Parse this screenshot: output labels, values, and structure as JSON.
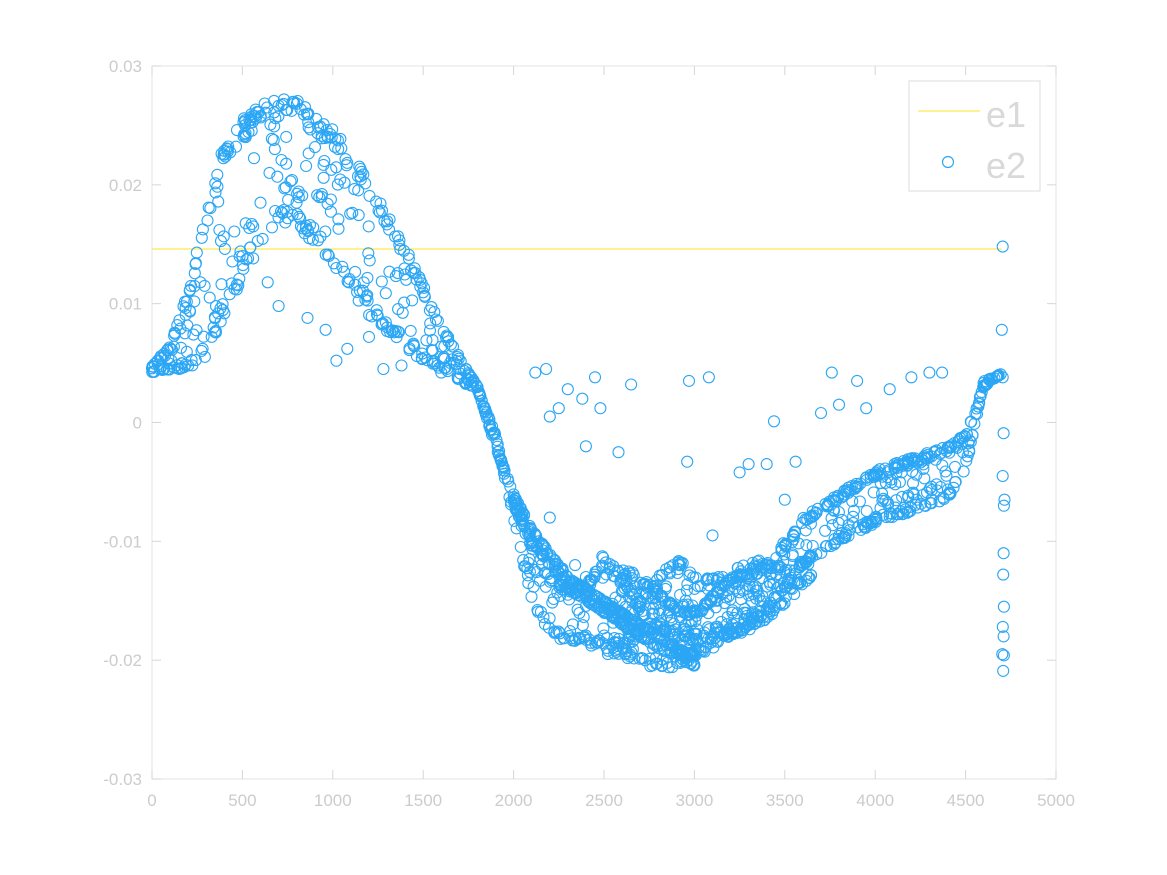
{
  "chart_data": {
    "type": "scatter",
    "xlim": [
      0,
      5000
    ],
    "ylim": [
      -0.03,
      0.03
    ],
    "xticks": [
      0,
      500,
      1000,
      1500,
      2000,
      2500,
      3000,
      3500,
      4000,
      4500,
      5000
    ],
    "yticks": [
      -0.03,
      -0.02,
      -0.01,
      0,
      0.01,
      0.02,
      0.03
    ],
    "xtick_labels": [
      "0",
      "500",
      "1000",
      "1500",
      "2000",
      "2500",
      "3000",
      "3500",
      "4000",
      "4500",
      "5000"
    ],
    "ytick_labels": [
      "-0.03",
      "-0.02",
      "-0.01",
      "0",
      "0.01",
      "0.02",
      "0.03"
    ],
    "grid": false,
    "legend_position": "top-right",
    "series": [
      {
        "name": "e1",
        "kind": "line",
        "color": "#ffe650",
        "x": [
          0,
          4700
        ],
        "y": [
          0.0146,
          0.0146
        ]
      },
      {
        "name": "e2",
        "kind": "scatter",
        "marker": "open-circle",
        "color": "#2ba6f5",
        "bands": [
          {
            "x": [
              0,
              100,
              200,
              300,
              400,
              500,
              600,
              700,
              800,
              900,
              1000,
              1100,
              1200,
              1300,
              1400,
              1500,
              1600,
              1700,
              1800,
              1900,
              2000,
              2100,
              2200,
              2300,
              2400,
              2500,
              2600,
              2700,
              2800,
              2900,
              3000,
              3200,
              3400,
              3600,
              3800,
              4000,
              4200,
              4400,
              4500,
              4600,
              4700
            ],
            "y_upper": [
              0.0047,
              0.0065,
              0.011,
              0.018,
              0.0235,
              0.0255,
              0.0268,
              0.0275,
              0.0272,
              0.0258,
              0.0248,
              0.0228,
              0.0205,
              0.0175,
              0.0148,
              0.0115,
              0.0082,
              0.0055,
              0.003,
              -0.002,
              -0.006,
              -0.01,
              -0.013,
              -0.014,
              -0.0135,
              -0.011,
              -0.013,
              -0.015,
              -0.013,
              -0.011,
              -0.013,
              -0.013,
              -0.012,
              -0.008,
              -0.006,
              -0.004,
              -0.003,
              -0.002,
              -0.001,
              0.003,
              0.0042
            ],
            "y_lower": [
              0.0042,
              0.0044,
              0.0046,
              0.0055,
              0.009,
              0.012,
              0.015,
              0.017,
              0.0165,
              0.015,
              0.0132,
              0.0112,
              0.009,
              0.0075,
              0.0062,
              0.0052,
              0.0045,
              0.0035,
              0.0028,
              -0.001,
              -0.008,
              -0.015,
              -0.0178,
              -0.0185,
              -0.0185,
              -0.0195,
              -0.0197,
              -0.0203,
              -0.0208,
              -0.0208,
              -0.02,
              -0.018,
              -0.016,
              -0.012,
              -0.01,
              -0.0085,
              -0.0075,
              -0.0065,
              -0.004,
              0.0035,
              0.004
            ]
          },
          {
            "x": [
              2000,
              2100,
              2200,
              2300,
              2400,
              2500,
              2600,
              2700,
              2800,
              2900,
              3000
            ],
            "y_upper": [
              -0.006,
              -0.009,
              -0.011,
              -0.013,
              -0.014,
              -0.015,
              -0.016,
              -0.017,
              -0.018,
              -0.019,
              -0.0195
            ],
            "y_lower": [
              -0.007,
              -0.01,
              -0.012,
              -0.014,
              -0.015,
              -0.016,
              -0.017,
              -0.018,
              -0.019,
              -0.0198,
              -0.0205
            ]
          },
          {
            "x": [
              2550,
              2650,
              2750,
              2850,
              2950,
              3050,
              3150,
              3250,
              3350,
              3450,
              3550,
              3650
            ],
            "y_upper": [
              -0.012,
              -0.0125,
              -0.0135,
              -0.015,
              -0.016,
              -0.0155,
              -0.0135,
              -0.012,
              -0.0115,
              -0.012,
              -0.0125,
              -0.011
            ],
            "y_lower": [
              -0.019,
              -0.0185,
              -0.0175,
              -0.0178,
              -0.0185,
              -0.0185,
              -0.018,
              -0.0178,
              -0.0172,
              -0.016,
              -0.0145,
              -0.013
            ]
          }
        ],
        "points": [
          [
            4705,
            0.0148
          ],
          [
            4700,
            0.0078
          ],
          [
            4705,
            0.0038
          ],
          [
            4710,
            -0.0009
          ],
          [
            4705,
            -0.0045
          ],
          [
            4715,
            -0.0065
          ],
          [
            4712,
            -0.007
          ],
          [
            4710,
            -0.011
          ],
          [
            4708,
            -0.0128
          ],
          [
            4712,
            -0.0155
          ],
          [
            4706,
            -0.0172
          ],
          [
            4710,
            -0.018
          ],
          [
            4703,
            -0.0195
          ],
          [
            4712,
            -0.0196
          ],
          [
            4708,
            -0.0209
          ],
          [
            640,
            0.0118
          ],
          [
            700,
            0.0098
          ],
          [
            860,
            0.0088
          ],
          [
            960,
            0.0078
          ],
          [
            1020,
            0.0052
          ],
          [
            1080,
            0.0062
          ],
          [
            1200,
            0.0072
          ],
          [
            1280,
            0.0045
          ],
          [
            1380,
            0.0048
          ],
          [
            1600,
            0.0042
          ],
          [
            1700,
            0.0045
          ],
          [
            2120,
            0.0042
          ],
          [
            2180,
            0.0045
          ],
          [
            2300,
            0.0028
          ],
          [
            2380,
            0.002
          ],
          [
            2450,
            0.0038
          ],
          [
            2480,
            0.0012
          ],
          [
            2650,
            0.0032
          ],
          [
            2970,
            0.0035
          ],
          [
            3080,
            0.0038
          ],
          [
            3760,
            0.0042
          ],
          [
            3900,
            0.0035
          ],
          [
            4080,
            0.0028
          ],
          [
            4200,
            0.0038
          ],
          [
            4300,
            0.0042
          ],
          [
            4370,
            0.0042
          ],
          [
            2200,
            0.0005
          ],
          [
            2250,
            0.0012
          ],
          [
            2400,
            -0.002
          ],
          [
            2580,
            -0.0025
          ],
          [
            2960,
            -0.0033
          ],
          [
            3300,
            -0.0035
          ],
          [
            3440,
            0.0001
          ],
          [
            3560,
            -0.0033
          ],
          [
            3700,
            0.0008
          ],
          [
            3800,
            0.0015
          ],
          [
            3950,
            0.0012
          ],
          [
            2200,
            -0.008
          ],
          [
            2270,
            -0.0123
          ],
          [
            2340,
            -0.012
          ],
          [
            2400,
            -0.013
          ],
          [
            2620,
            -0.0155
          ],
          [
            2700,
            -0.017
          ],
          [
            2840,
            -0.014
          ],
          [
            2950,
            -0.016
          ],
          [
            3100,
            -0.0095
          ],
          [
            3250,
            -0.0042
          ],
          [
            3400,
            -0.0035
          ],
          [
            3500,
            -0.0065
          ],
          [
            150,
            0.0045
          ],
          [
            200,
            0.0048
          ],
          [
            280,
            0.0062
          ],
          [
            330,
            0.0072
          ],
          [
            380,
            0.0085
          ],
          [
            430,
            0.0108
          ],
          [
            500,
            0.014
          ],
          [
            560,
            0.0165
          ],
          [
            600,
            0.0185
          ],
          [
            650,
            0.021
          ],
          [
            740,
            0.0198
          ],
          [
            800,
            0.0185
          ]
        ]
      }
    ]
  }
}
